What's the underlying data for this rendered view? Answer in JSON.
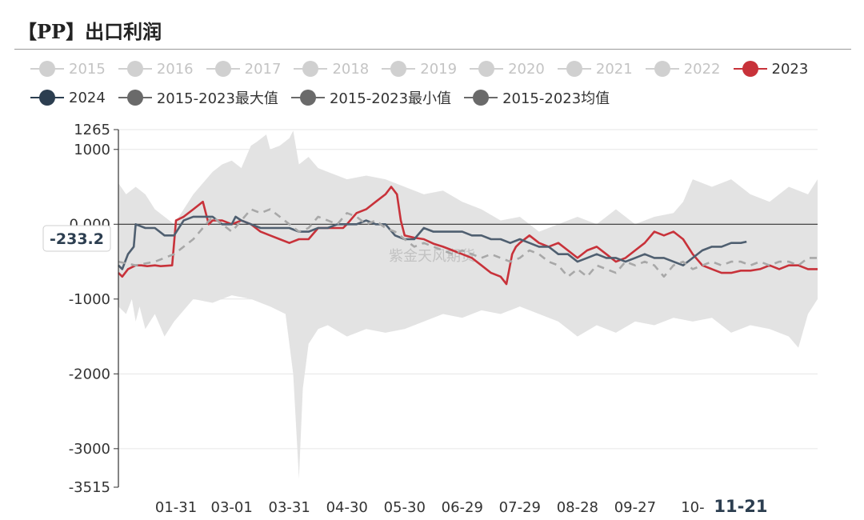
{
  "title": "【PP】出口利润",
  "legend": {
    "row1": [
      {
        "label": "2015",
        "active": false,
        "color": "#d0d0d0"
      },
      {
        "label": "2016",
        "active": false,
        "color": "#d0d0d0"
      },
      {
        "label": "2017",
        "active": false,
        "color": "#d0d0d0"
      },
      {
        "label": "2018",
        "active": false,
        "color": "#d0d0d0"
      },
      {
        "label": "2019",
        "active": false,
        "color": "#d0d0d0"
      },
      {
        "label": "2020",
        "active": false,
        "color": "#d0d0d0"
      },
      {
        "label": "2021",
        "active": false,
        "color": "#d0d0d0"
      },
      {
        "label": "2022",
        "active": false,
        "color": "#d0d0d0"
      },
      {
        "label": "2023",
        "active": true,
        "color": "#c8323a"
      }
    ],
    "row2": [
      {
        "label": "2024",
        "active": true,
        "color": "#2c3e50"
      },
      {
        "label": "2015-2023最大值",
        "active": true,
        "color": "#6a6a6a"
      },
      {
        "label": "2015-2023最小值",
        "active": true,
        "color": "#6a6a6a"
      },
      {
        "label": "2015-2023均值",
        "active": true,
        "color": "#6a6a6a"
      }
    ]
  },
  "tooltip_label": "-233.2",
  "watermark": "紫金天风期货",
  "chart_data": {
    "type": "line",
    "title": "【PP】出口利润",
    "ylim": [
      -3515,
      1265
    ],
    "y_ticks": [
      {
        "value": 1265,
        "label": "1265"
      },
      {
        "value": 1000,
        "label": "1000"
      },
      {
        "value": 0,
        "label": "0.000"
      },
      {
        "value": -1000,
        "label": "-1000"
      },
      {
        "value": -2000,
        "label": "-2000"
      },
      {
        "value": -3000,
        "label": "-3000"
      },
      {
        "value": -3515,
        "label": "-3515"
      }
    ],
    "x_ticks": [
      {
        "day": 31,
        "label": "01-31"
      },
      {
        "day": 60,
        "label": "03-01"
      },
      {
        "day": 90,
        "label": "03-31"
      },
      {
        "day": 120,
        "label": "04-30"
      },
      {
        "day": 150,
        "label": "05-30"
      },
      {
        "day": 180,
        "label": "06-29"
      },
      {
        "day": 210,
        "label": "07-29"
      },
      {
        "day": 240,
        "label": "08-28"
      },
      {
        "day": 270,
        "label": "09-27"
      },
      {
        "day": 300,
        "label": "10-"
      },
      {
        "day": 325,
        "label": "11-21",
        "highlight": true
      }
    ],
    "xlim": [
      1,
      365
    ],
    "grid": true,
    "legend_position": "top",
    "band_max": {
      "x": [
        1,
        5,
        10,
        15,
        20,
        30,
        40,
        50,
        55,
        60,
        65,
        70,
        73,
        78,
        80,
        85,
        90,
        92,
        95,
        100,
        105,
        110,
        120,
        130,
        140,
        150,
        160,
        170,
        180,
        190,
        200,
        210,
        220,
        230,
        240,
        250,
        260,
        270,
        280,
        290,
        295,
        300,
        310,
        320,
        330,
        340,
        350,
        360,
        365
      ],
      "y": [
        550,
        400,
        500,
        400,
        200,
        0,
        400,
        700,
        800,
        850,
        750,
        1050,
        1100,
        1200,
        1000,
        1050,
        1150,
        1250,
        800,
        900,
        750,
        700,
        600,
        650,
        600,
        500,
        400,
        450,
        300,
        200,
        50,
        100,
        -100,
        0,
        100,
        0,
        200,
        0,
        100,
        150,
        300,
        600,
        500,
        600,
        400,
        300,
        500,
        400,
        600
      ]
    },
    "band_min": {
      "x": [
        1,
        5,
        8,
        10,
        12,
        15,
        20,
        25,
        30,
        40,
        50,
        60,
        70,
        80,
        88,
        92,
        95,
        97,
        100,
        105,
        110,
        120,
        130,
        140,
        150,
        160,
        170,
        180,
        190,
        200,
        210,
        220,
        230,
        240,
        250,
        260,
        270,
        280,
        290,
        300,
        310,
        320,
        330,
        340,
        350,
        355,
        360,
        365
      ],
      "y": [
        -1100,
        -1200,
        -1000,
        -1300,
        -1100,
        -1400,
        -1200,
        -1500,
        -1300,
        -1000,
        -1050,
        -950,
        -1000,
        -1100,
        -1200,
        -2000,
        -3400,
        -2200,
        -1600,
        -1400,
        -1350,
        -1500,
        -1400,
        -1450,
        -1400,
        -1300,
        -1200,
        -1250,
        -1150,
        -1200,
        -1100,
        -1200,
        -1300,
        -1500,
        -1350,
        -1450,
        -1300,
        -1350,
        -1250,
        -1300,
        -1250,
        -1450,
        -1350,
        -1400,
        -1500,
        -1650,
        -1200,
        -1000
      ]
    },
    "series": [
      {
        "name": "2023",
        "color": "#c8323a",
        "style": "solid",
        "x": [
          1,
          3,
          6,
          10,
          13,
          16,
          20,
          23,
          29,
          31,
          35,
          40,
          45,
          48,
          50,
          55,
          60,
          65,
          70,
          75,
          80,
          85,
          90,
          95,
          100,
          105,
          110,
          115,
          118,
          120,
          125,
          130,
          135,
          140,
          143,
          146,
          148,
          150,
          155,
          160,
          165,
          170,
          175,
          180,
          185,
          190,
          195,
          200,
          203,
          206,
          208,
          210,
          215,
          220,
          225,
          230,
          235,
          240,
          245,
          250,
          255,
          260,
          265,
          270,
          275,
          280,
          285,
          290,
          295,
          300,
          305,
          310,
          315,
          320,
          325,
          330,
          335,
          340,
          345,
          350,
          355,
          360,
          365
        ],
        "y": [
          -650,
          -700,
          -600,
          -550,
          -550,
          -560,
          -550,
          -560,
          -550,
          50,
          100,
          200,
          300,
          0,
          50,
          50,
          0,
          50,
          0,
          -100,
          -150,
          -200,
          -250,
          -200,
          -200,
          -50,
          -50,
          -50,
          -50,
          0,
          150,
          200,
          300,
          400,
          500,
          400,
          50,
          -150,
          -180,
          -200,
          -260,
          -300,
          -350,
          -400,
          -450,
          -550,
          -650,
          -700,
          -800,
          -400,
          -300,
          -250,
          -150,
          -250,
          -300,
          -250,
          -350,
          -450,
          -350,
          -300,
          -400,
          -500,
          -450,
          -350,
          -250,
          -100,
          -150,
          -100,
          -200,
          -400,
          -550,
          -600,
          -650,
          -650,
          -620,
          -620,
          -600,
          -550,
          -600,
          -550,
          -550,
          -600,
          -600
        ]
      },
      {
        "name": "2024",
        "color": "#4f5f70",
        "style": "solid",
        "x": [
          1,
          3,
          6,
          9,
          10,
          15,
          20,
          25,
          30,
          35,
          40,
          45,
          50,
          55,
          60,
          62,
          65,
          70,
          75,
          80,
          85,
          90,
          95,
          100,
          105,
          110,
          115,
          120,
          125,
          130,
          135,
          140,
          145,
          150,
          155,
          160,
          165,
          170,
          175,
          180,
          185,
          190,
          195,
          200,
          205,
          210,
          215,
          220,
          225,
          230,
          235,
          240,
          245,
          250,
          255,
          260,
          265,
          270,
          275,
          280,
          285,
          290,
          295,
          300,
          305,
          310,
          315,
          320,
          325,
          328
        ],
        "y": [
          -550,
          -600,
          -400,
          -300,
          0,
          -50,
          -50,
          -150,
          -150,
          50,
          100,
          100,
          100,
          0,
          0,
          100,
          50,
          0,
          -50,
          -50,
          -50,
          -50,
          -100,
          -100,
          -50,
          -50,
          0,
          0,
          0,
          50,
          0,
          0,
          -150,
          -200,
          -200,
          -50,
          -100,
          -100,
          -100,
          -100,
          -150,
          -150,
          -200,
          -200,
          -250,
          -200,
          -250,
          -300,
          -300,
          -400,
          -400,
          -500,
          -450,
          -400,
          -450,
          -450,
          -500,
          -450,
          -400,
          -450,
          -450,
          -500,
          -550,
          -450,
          -350,
          -300,
          -300,
          -250,
          -250,
          -233.2
        ]
      },
      {
        "name": "2015-2023均值",
        "color": "#a8a8a8",
        "style": "dashed",
        "x": [
          1,
          10,
          20,
          30,
          40,
          45,
          50,
          55,
          60,
          65,
          70,
          75,
          80,
          85,
          90,
          95,
          100,
          105,
          110,
          115,
          120,
          125,
          130,
          135,
          140,
          145,
          150,
          155,
          160,
          165,
          170,
          175,
          180,
          185,
          190,
          195,
          200,
          205,
          210,
          215,
          220,
          225,
          230,
          235,
          240,
          245,
          250,
          255,
          260,
          265,
          270,
          275,
          280,
          285,
          290,
          295,
          300,
          305,
          310,
          315,
          320,
          325,
          330,
          335,
          340,
          345,
          350,
          355,
          360,
          365
        ],
        "y": [
          -500,
          -550,
          -500,
          -400,
          -200,
          -50,
          100,
          0,
          -100,
          50,
          200,
          150,
          200,
          100,
          0,
          -100,
          -50,
          100,
          50,
          0,
          150,
          100,
          0,
          50,
          -50,
          -100,
          -200,
          -300,
          -250,
          -300,
          -350,
          -400,
          -350,
          -400,
          -450,
          -400,
          -450,
          -500,
          -450,
          -350,
          -400,
          -500,
          -550,
          -700,
          -600,
          -700,
          -550,
          -600,
          -650,
          -500,
          -550,
          -500,
          -550,
          -700,
          -550,
          -500,
          -600,
          -550,
          -500,
          -550,
          -500,
          -500,
          -550,
          -500,
          -550,
          -500,
          -500,
          -550,
          -450,
          -450
        ]
      }
    ]
  }
}
